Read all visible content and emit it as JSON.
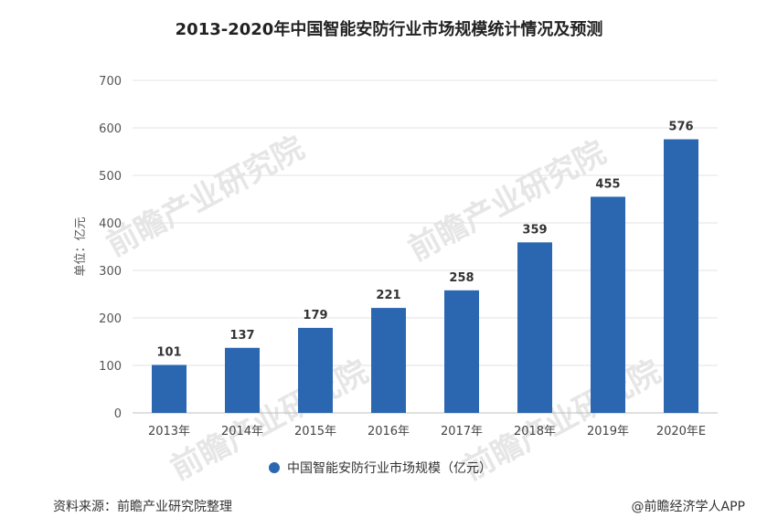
{
  "chart_data": {
    "type": "bar",
    "title": "2013-2020年中国智能安防行业市场规模统计情况及预测",
    "categories": [
      "2013年",
      "2014年",
      "2015年",
      "2016年",
      "2017年",
      "2018年",
      "2019年",
      "2020年E"
    ],
    "series": [
      {
        "name": "中国智能安防行业市场规模（亿元）",
        "values": [
          101,
          137,
          179,
          221,
          258,
          359,
          455,
          576
        ]
      }
    ],
    "ylabel": "单位：亿元",
    "ylim": [
      0,
      700
    ],
    "yticks": [
      0,
      100,
      200,
      300,
      400,
      500,
      600,
      700
    ],
    "grid": true,
    "legend": "bottom",
    "bar_color": "#2b66b1"
  },
  "footer": {
    "source": "资料来源：前瞻产业研究院整理",
    "credit": "@前瞻经济学人APP"
  },
  "watermark": {
    "text": "前瞻产业研究院",
    "color": "#e6e6e6"
  }
}
